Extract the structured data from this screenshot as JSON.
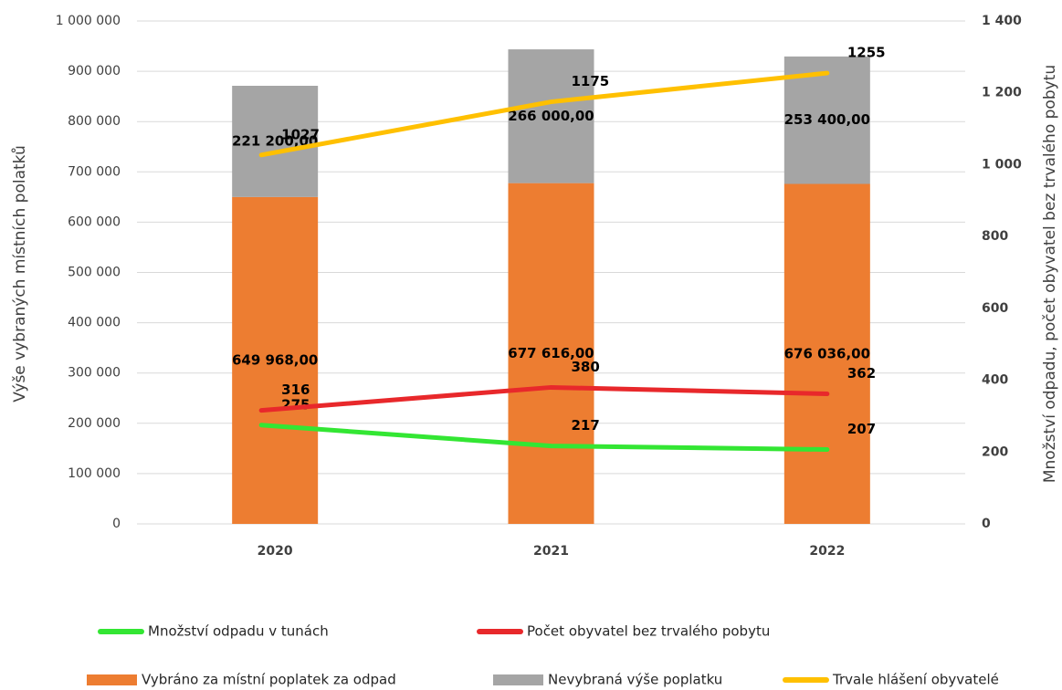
{
  "chart_data": {
    "type": "bar",
    "stacked": true,
    "categories": [
      "2020",
      "2021",
      "2022"
    ],
    "y_label": "Výše vybraných místních polatků",
    "y2_label": "Množství odpadu, počet obyvatel bez trvalého pobytu",
    "ylim": [
      0,
      1000000
    ],
    "yticks": [
      0,
      {
        "value": 100000,
        "label": "100 000"
      },
      {
        "value": 200000,
        "label": "200 000"
      },
      {
        "value": 300000,
        "label": "300 000"
      },
      {
        "value": 400000,
        "label": "400 000"
      },
      {
        "value": 500000,
        "label": "500 000"
      },
      {
        "value": 600000,
        "label": "600 000"
      },
      {
        "value": 700000,
        "label": "700 000"
      },
      {
        "value": 800000,
        "label": "800 000"
      },
      {
        "value": 900000,
        "label": "900 000"
      },
      {
        "value": 1000000,
        "label": "1 000 000"
      }
    ],
    "y2lim": [
      0,
      1400
    ],
    "y2ticks": [
      0,
      200,
      400,
      600,
      800,
      {
        "value": 1000,
        "label": "1 000"
      },
      {
        "value": 1200,
        "label": "1 200"
      },
      {
        "value": 1400,
        "label": "1 400"
      }
    ],
    "grid": true,
    "series": [
      {
        "name": "Vybráno za místní poplatek za odpad",
        "type": "bar",
        "color": "#ed7d31",
        "values": [
          649968,
          677616,
          676036
        ],
        "value_labels": [
          "649 968,00",
          "677 616,00",
          "676 036,00"
        ]
      },
      {
        "name": "Nevybraná výše poplatku",
        "type": "bar",
        "color": "#a5a5a5",
        "values": [
          221200,
          266000,
          253400
        ],
        "value_labels": [
          "221 200,00",
          "266 000,00",
          "253 400,00"
        ]
      },
      {
        "name": "Trvale hlášení obyvatelé",
        "type": "line",
        "axis": "y2",
        "color": "#ffc000",
        "values": [
          1027,
          1175,
          1255
        ]
      },
      {
        "name": "Množství odpadu v tunách",
        "type": "line",
        "axis": "y2",
        "color": "#33e633",
        "values": [
          275,
          217,
          207
        ]
      },
      {
        "name": "Počet obyvatel bez trvalého pobytu",
        "type": "line",
        "axis": "y2",
        "color": "#e8282b",
        "values": [
          316,
          380,
          362
        ]
      }
    ]
  }
}
